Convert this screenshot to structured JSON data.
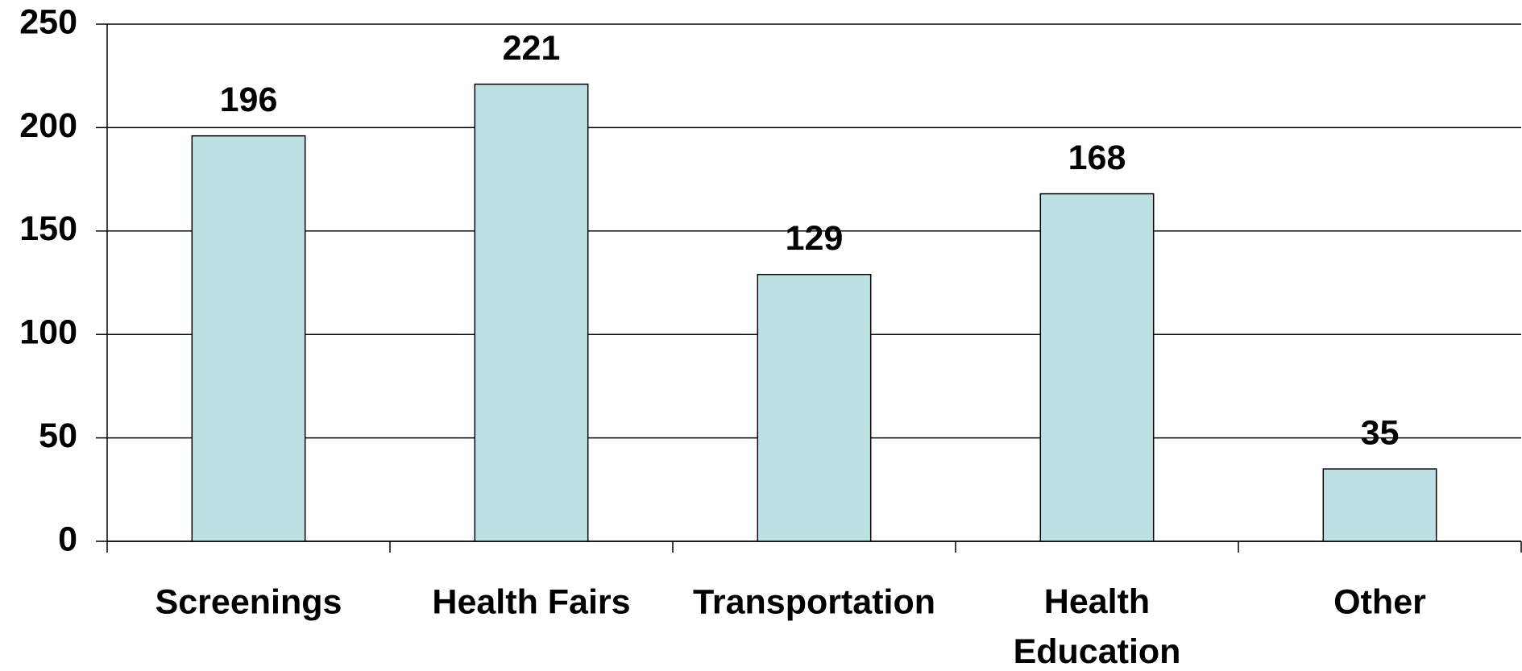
{
  "chart_data": {
    "type": "bar",
    "categories": [
      "Screenings",
      "Health Fairs",
      "Transportation",
      "Health Education",
      "Other"
    ],
    "values": [
      196,
      221,
      129,
      168,
      35
    ],
    "color": "#bde0e3",
    "ylim": [
      0,
      250
    ],
    "yticks": [
      0,
      50,
      100,
      150,
      200,
      250
    ],
    "grid": true
  }
}
